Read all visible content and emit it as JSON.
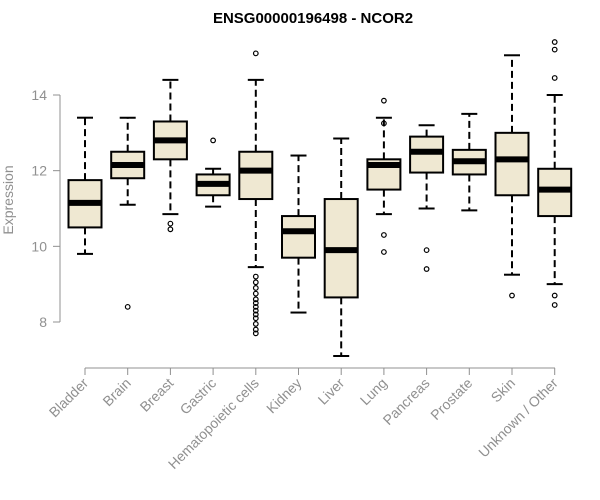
{
  "chart_data": {
    "type": "box",
    "title": "ENSG00000196498 - NCOR2",
    "ylabel": "Expression",
    "xlabel": "",
    "ylim": [
      7.0,
      15.5
    ],
    "yticks": [
      8,
      10,
      12,
      14
    ],
    "grid": false,
    "legend": "none",
    "colors": {
      "box_fill": "#efe8d2",
      "stroke": "#000000",
      "median": "#000000",
      "axis_text": "#909090"
    },
    "categories": [
      "Bladder",
      "Brain",
      "Breast",
      "Gastric",
      "Hematopoietic cells",
      "Kidney",
      "Liver",
      "Lung",
      "Pancreas",
      "Prostate",
      "Skin",
      "Unknown / Other"
    ],
    "boxes": [
      {
        "category": "Bladder",
        "whisker_low": 9.8,
        "q1": 10.5,
        "median": 11.15,
        "q3": 11.75,
        "whisker_high": 13.4,
        "outliers": []
      },
      {
        "category": "Brain",
        "whisker_low": 11.1,
        "q1": 11.8,
        "median": 12.15,
        "q3": 12.5,
        "whisker_high": 13.4,
        "outliers": [
          8.4
        ]
      },
      {
        "category": "Breast",
        "whisker_low": 10.85,
        "q1": 12.3,
        "median": 12.8,
        "q3": 13.3,
        "whisker_high": 14.4,
        "outliers": [
          10.6,
          10.45
        ]
      },
      {
        "category": "Gastric",
        "whisker_low": 11.05,
        "q1": 11.35,
        "median": 11.65,
        "q3": 11.9,
        "whisker_high": 12.05,
        "outliers": [
          12.8
        ]
      },
      {
        "category": "Hematopoietic cells",
        "whisker_low": 9.45,
        "q1": 11.25,
        "median": 12.0,
        "q3": 12.5,
        "whisker_high": 14.4,
        "outliers": [
          15.1,
          9.2,
          9.05,
          8.9,
          8.75,
          8.6,
          8.5,
          8.4,
          8.3,
          8.2,
          8.1,
          7.95,
          7.8,
          7.7
        ]
      },
      {
        "category": "Kidney",
        "whisker_low": 8.25,
        "q1": 9.7,
        "median": 10.4,
        "q3": 10.8,
        "whisker_high": 12.4,
        "outliers": []
      },
      {
        "category": "Liver",
        "whisker_low": 7.1,
        "q1": 8.65,
        "median": 9.9,
        "q3": 11.25,
        "whisker_high": 12.85,
        "outliers": []
      },
      {
        "category": "Lung",
        "whisker_low": 10.85,
        "q1": 11.5,
        "median": 12.15,
        "q3": 12.3,
        "whisker_high": 13.4,
        "outliers": [
          13.85,
          13.25,
          10.3,
          9.85
        ]
      },
      {
        "category": "Pancreas",
        "whisker_low": 11.0,
        "q1": 11.95,
        "median": 12.5,
        "q3": 12.9,
        "whisker_high": 13.2,
        "outliers": [
          9.9,
          9.4
        ]
      },
      {
        "category": "Prostate",
        "whisker_low": 10.95,
        "q1": 11.9,
        "median": 12.25,
        "q3": 12.55,
        "whisker_high": 13.5,
        "outliers": []
      },
      {
        "category": "Skin",
        "whisker_low": 9.25,
        "q1": 11.35,
        "median": 12.3,
        "q3": 13.0,
        "whisker_high": 15.05,
        "outliers": [
          8.7
        ]
      },
      {
        "category": "Unknown / Other",
        "whisker_low": 9.0,
        "q1": 10.8,
        "median": 11.5,
        "q3": 12.05,
        "whisker_high": 14.0,
        "outliers": [
          15.4,
          15.2,
          14.45,
          8.7,
          8.45
        ]
      }
    ]
  }
}
